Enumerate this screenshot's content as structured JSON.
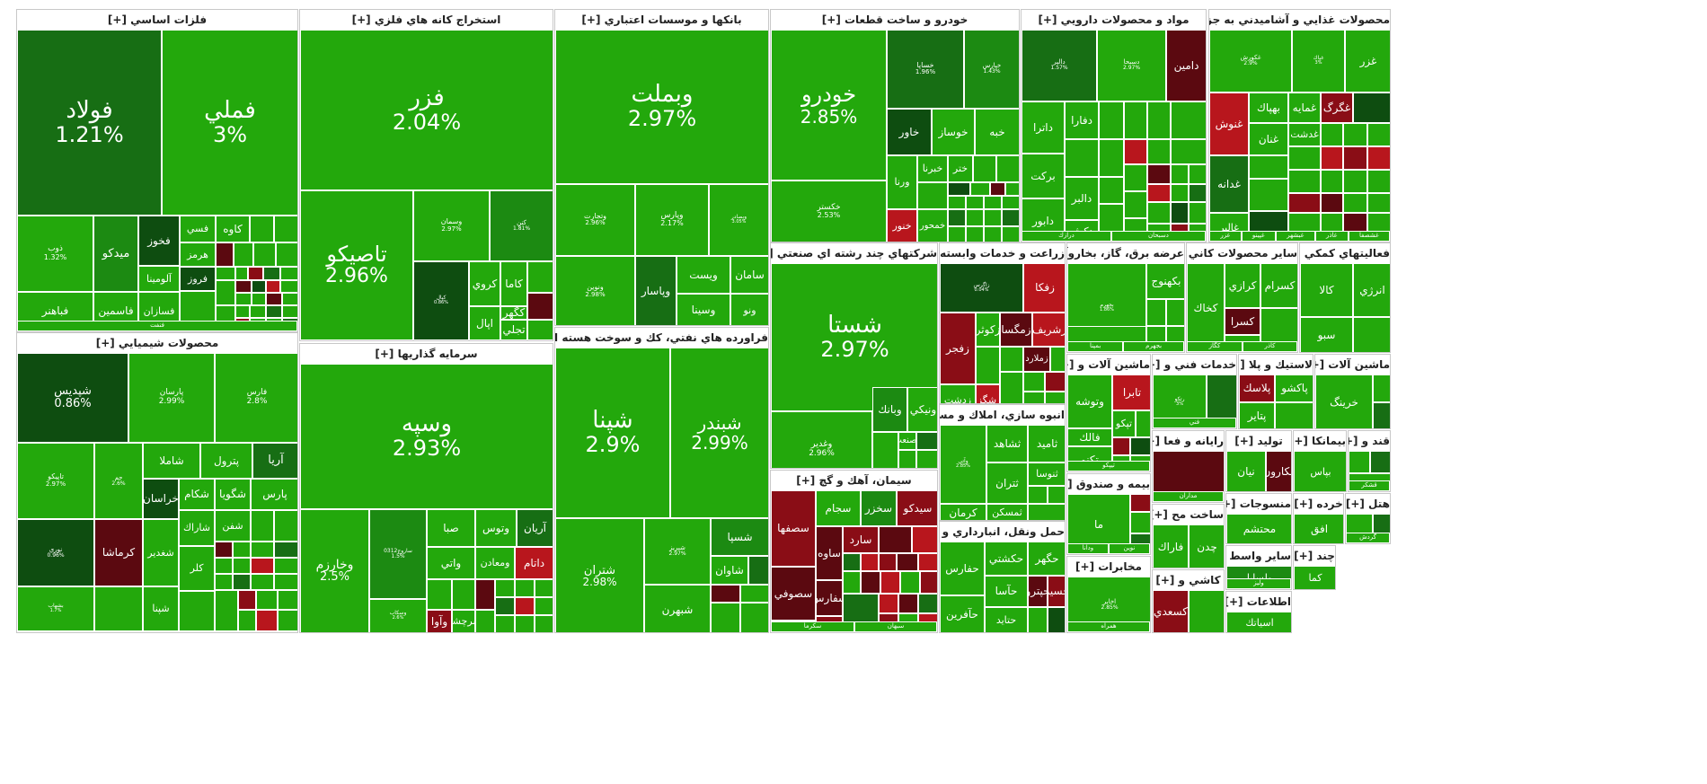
{
  "sectors": [
    {
      "title": "فلزات اساسي [+]",
      "tiles": [
        {
          "name": "فولاد",
          "pct": "1.21%"
        },
        {
          "name": "فملي",
          "pct": "3%"
        },
        {
          "name": "ذوب",
          "pct": "1.32%"
        },
        {
          "name": "ميدكو"
        },
        {
          "name": "فخوز"
        },
        {
          "name": "فسي"
        },
        {
          "name": "كاوه"
        },
        {
          "name": "هرمز"
        },
        {
          "name": "آلومينا"
        },
        {
          "name": "فباهنر"
        },
        {
          "name": "فاسمين"
        },
        {
          "name": "فسازان"
        },
        {
          "name": "فروز"
        },
        {
          "name": "فنفت"
        }
      ]
    },
    {
      "title": "استخراج كانه هاي فلزي [+]",
      "tiles": [
        {
          "name": "فزر",
          "pct": "2.04%"
        },
        {
          "name": "تاصيكو",
          "pct": "2.96%"
        },
        {
          "name": "وسمان",
          "pct": "2.97%"
        },
        {
          "name": "كنن",
          "pct": "1.81%"
        },
        {
          "name": "كيال",
          "pct": "0.86%"
        },
        {
          "name": "كروي"
        },
        {
          "name": "كاما"
        },
        {
          "name": "كگهر"
        },
        {
          "name": "اپال"
        },
        {
          "name": "تجلي"
        }
      ]
    },
    {
      "title": "بانكها و موسسات اعتباري [+]",
      "tiles": [
        {
          "name": "وبملت",
          "pct": "2.97%"
        },
        {
          "name": "وتجارت",
          "pct": "2.96%"
        },
        {
          "name": "وپارس",
          "pct": "2.17%"
        },
        {
          "name": "وبصادر",
          "pct": "3.05%"
        },
        {
          "name": "ونوين",
          "pct": "2.98%"
        },
        {
          "name": "وپاسار"
        },
        {
          "name": "ويست"
        },
        {
          "name": "سامان"
        },
        {
          "name": "وسينا"
        },
        {
          "name": "ونو"
        }
      ]
    },
    {
      "title": "خودرو و ساخت قطعات [+]",
      "tiles": [
        {
          "name": "خودرو",
          "pct": "2.85%"
        },
        {
          "name": "خساپا",
          "pct": "1.96%"
        },
        {
          "name": "خپارس",
          "pct": "1.43%"
        },
        {
          "name": "خكستر",
          "pct": "2.53%"
        },
        {
          "name": "خاور"
        },
        {
          "name": "خوساز"
        },
        {
          "name": "خبه"
        },
        {
          "name": "ورنا"
        },
        {
          "name": "خبرنا"
        },
        {
          "name": "ختر"
        },
        {
          "name": "خنور"
        },
        {
          "name": "خمحور"
        }
      ]
    },
    {
      "title": "مواد و محصولات دارويي [+]",
      "tiles": [
        {
          "name": "دالبر",
          "pct": "1.57%"
        },
        {
          "name": "دسبحا",
          "pct": "2.97%"
        },
        {
          "name": "دامين"
        },
        {
          "name": "داترا"
        },
        {
          "name": "دفارا"
        },
        {
          "name": "بركت"
        },
        {
          "name": "دالبر"
        },
        {
          "name": "دابور"
        },
        {
          "name": "دكوثر"
        },
        {
          "name": "دسبحان"
        },
        {
          "name": "درازك"
        }
      ]
    },
    {
      "title": "محصولات غذايي و آشاميدني به جز قند [+]",
      "tiles": [
        {
          "name": "غكورش",
          "pct": "2.9%"
        },
        {
          "name": "غپاك",
          "pct": "3%"
        },
        {
          "name": "غزر"
        },
        {
          "name": "غنوش"
        },
        {
          "name": "بهپاك"
        },
        {
          "name": "غمايه"
        },
        {
          "name": "غگرگ"
        },
        {
          "name": "غنان"
        },
        {
          "name": "غدشت"
        },
        {
          "name": "غشصفا"
        },
        {
          "name": "غاذر"
        },
        {
          "name": "غبشهر"
        },
        {
          "name": "غپينو"
        },
        {
          "name": "غدانه"
        },
        {
          "name": "غالبر"
        },
        {
          "name": "غزر"
        }
      ]
    },
    {
      "title": "محصولات شيميايي [+]",
      "tiles": [
        {
          "name": "شپديس",
          "pct": "0.86%"
        },
        {
          "name": "پارسان",
          "pct": "2.99%"
        },
        {
          "name": "فارس",
          "pct": "2.8%"
        },
        {
          "name": "شاملا"
        },
        {
          "name": "پترول"
        },
        {
          "name": "آريا"
        },
        {
          "name": "تاپيكو",
          "pct": "2.97%"
        },
        {
          "name": "جم",
          "pct": "2.6%"
        },
        {
          "name": "خراسان"
        },
        {
          "name": "شكام"
        },
        {
          "name": "شگويا"
        },
        {
          "name": "پارس"
        },
        {
          "name": "نوري",
          "pct": "0.96%"
        },
        {
          "name": "كرماشا"
        },
        {
          "name": "شغدير"
        },
        {
          "name": "شاراك"
        },
        {
          "name": "شفن"
        },
        {
          "name": "كلر"
        },
        {
          "name": "شپنا"
        },
        {
          "name": "بشهاب",
          "pct": "1.7%"
        }
      ]
    },
    {
      "title": "سرمايه گذاريها [+]",
      "tiles": [
        {
          "name": "وسپه",
          "pct": "2.93%"
        },
        {
          "name": "وخارزم",
          "pct": "2.5%"
        },
        {
          "name": "ساروج0312",
          "pct": "1.5%"
        },
        {
          "name": "صبا"
        },
        {
          "name": "وتوس"
        },
        {
          "name": "آريان"
        },
        {
          "name": "واتي"
        },
        {
          "name": "ومعادن"
        },
        {
          "name": "داتام"
        },
        {
          "name": "وسكاب",
          "pct": "2.6%"
        },
        {
          "name": "وآوا"
        },
        {
          "name": "سرچشم"
        }
      ]
    },
    {
      "title": "فراورده هاي نفتي، كك و سوخت هسته اي [+]",
      "tiles": [
        {
          "name": "شپنا",
          "pct": "2.9%"
        },
        {
          "name": "شبندر",
          "pct": "2.99%"
        },
        {
          "name": "شتران",
          "pct": "2.98%"
        },
        {
          "name": "شبريز",
          "pct": "2.97%"
        },
        {
          "name": "شسپا"
        },
        {
          "name": "شاوان"
        },
        {
          "name": "شبهرن"
        }
      ]
    },
    {
      "title": "شركتهاي چند رشته اي صنعتي [+]",
      "tiles": [
        {
          "name": "شستا",
          "pct": "2.97%"
        },
        {
          "name": "وغدير",
          "pct": "2.96%"
        },
        {
          "name": "وبانك"
        },
        {
          "name": "ونيكي"
        },
        {
          "name": "وصنعت"
        }
      ]
    },
    {
      "title": "زراعت و خدمات وابسته [+]",
      "tiles": [
        {
          "name": "زاگرس",
          "pct": "0.04%"
        },
        {
          "name": "زفكا"
        },
        {
          "name": "زفجر"
        },
        {
          "name": "زمگسا"
        },
        {
          "name": "زكوثر"
        },
        {
          "name": "زشريف"
        },
        {
          "name": "زملارد"
        },
        {
          "name": "زشگزا"
        },
        {
          "name": "زدشت"
        }
      ]
    },
    {
      "title": "عرضه برق، گاز، بخاروآب [+]",
      "tiles": [
        {
          "name": "بجهرم",
          "pct": "1.86%"
        },
        {
          "name": "بكهنوج",
          "pct": "2.86%"
        },
        {
          "name": "بجهرم"
        },
        {
          "name": "بمپنا"
        }
      ]
    },
    {
      "title": "ساير محصولات كاني [+]",
      "tiles": [
        {
          "name": "كخاك"
        },
        {
          "name": "كرازي"
        },
        {
          "name": "كسرام"
        },
        {
          "name": "كسرا"
        },
        {
          "name": "كاذر"
        },
        {
          "name": "كگاز"
        }
      ]
    },
    {
      "title": "فعاليتهاي كمكي [+]",
      "tiles": [
        {
          "name": "انرژي"
        },
        {
          "name": "كالا"
        },
        {
          "name": "سبو"
        }
      ]
    },
    {
      "title": "سيمان، آهك و گچ [+]",
      "tiles": [
        {
          "name": "سصفها"
        },
        {
          "name": "سجام"
        },
        {
          "name": "سخزر"
        },
        {
          "name": "سيدكو"
        },
        {
          "name": "سصوفي"
        },
        {
          "name": "ساوه"
        },
        {
          "name": "سارد"
        },
        {
          "name": "سفارس"
        },
        {
          "name": "سبهان"
        },
        {
          "name": "سقارس"
        },
        {
          "name": "سشرق"
        },
        {
          "name": "سكرما"
        }
      ]
    },
    {
      "title": "انبوه سازي، املاك و مس [+]",
      "tiles": [
        {
          "name": "وآتي",
          "pct": "2.85%"
        },
        {
          "name": "ثشاهد"
        },
        {
          "name": "ثاميد"
        },
        {
          "name": "ثتران"
        },
        {
          "name": "ثنوسا"
        },
        {
          "name": "ثمسكن"
        },
        {
          "name": "كرمان"
        }
      ]
    },
    {
      "title": "حمل ونقل، انبارداري و ار [+]",
      "tiles": [
        {
          "name": "حفارس"
        },
        {
          "name": "حكشتي"
        },
        {
          "name": "حگهر"
        },
        {
          "name": "حآسا"
        },
        {
          "name": "حپترو"
        },
        {
          "name": "حسير"
        },
        {
          "name": "حآفرين"
        },
        {
          "name": "حتايد"
        }
      ]
    },
    {
      "title": "ماشين آلات و [+]",
      "tiles": [
        {
          "name": "وتوشه"
        },
        {
          "name": "تابرا"
        },
        {
          "name": "تپكو"
        },
        {
          "name": "تكنو"
        },
        {
          "name": "فالك"
        },
        {
          "name": "تيپكو"
        }
      ]
    },
    {
      "title": "بيمه و صندوق [+]",
      "tiles": [
        {
          "name": "ما"
        },
        {
          "name": "نوين"
        },
        {
          "name": "ودانا"
        }
      ]
    },
    {
      "title": "مخابرات [+]",
      "tiles": [
        {
          "name": "اخابر",
          "pct": "2.85%"
        },
        {
          "name": "همراه"
        }
      ]
    },
    {
      "title": "خدمات فني و [+]",
      "tiles": [
        {
          "name": "رتكو",
          "pct": "3%"
        },
        {
          "name": "فني"
        }
      ]
    },
    {
      "title": "لاستيك و پلا [+]",
      "tiles": [
        {
          "name": "پلاسك"
        },
        {
          "name": "پاكشو"
        },
        {
          "name": "پتاير"
        }
      ]
    },
    {
      "title": "ماشين آلات [+]",
      "tiles": [
        {
          "name": "خرينگ"
        }
      ]
    },
    {
      "title": "رايانه و فعا [+]",
      "tiles": [
        {
          "name": "مداران"
        }
      ]
    },
    {
      "title": "توليد [+]",
      "tiles": [
        {
          "name": "نيان"
        },
        {
          "name": "مكارون"
        }
      ]
    },
    {
      "title": "بيمانكا [+]",
      "tiles": [
        {
          "name": "بپاس"
        }
      ]
    },
    {
      "title": "قند و [+]",
      "tiles": [
        {
          "name": "قشكر"
        }
      ]
    },
    {
      "title": "ساخت مح [+]",
      "tiles": [
        {
          "name": "فاراك"
        },
        {
          "name": "چدن"
        }
      ]
    },
    {
      "title": "منسوجات [+]",
      "tiles": [
        {
          "name": "محتشم"
        }
      ]
    },
    {
      "title": "خرده [+]",
      "tiles": [
        {
          "name": "افق"
        }
      ]
    },
    {
      "title": "هتل [+]",
      "tiles": [
        {
          "name": "گردش"
        }
      ]
    },
    {
      "title": "كاشي و [+]",
      "tiles": [
        {
          "name": "كسعدي"
        }
      ]
    },
    {
      "title": "ساير واسط [+]",
      "tiles": [
        {
          "name": "ولساپا"
        },
        {
          "name": "وليز"
        }
      ]
    },
    {
      "title": "اطلاعات [+]",
      "tiles": [
        {
          "name": "اسياتك"
        }
      ]
    },
    {
      "title": "چند [+]",
      "tiles": [
        {
          "name": "كما"
        }
      ]
    }
  ]
}
